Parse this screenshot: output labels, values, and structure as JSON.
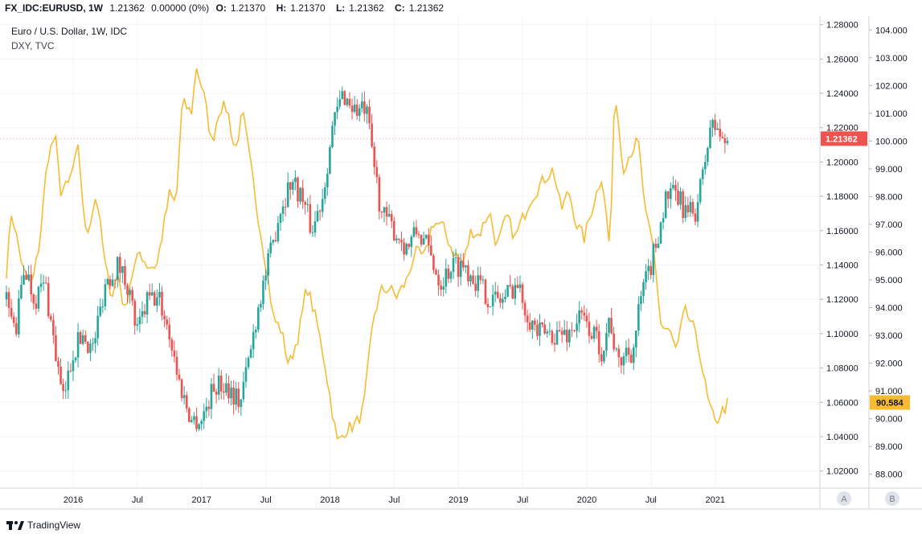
{
  "header": {
    "symbol": "FX_IDC:EURUSD, 1W",
    "last": "1.21362",
    "change": "0.00000 (0%)",
    "open_label": "O:",
    "open": "1.21370",
    "high_label": "H:",
    "high": "1.21370",
    "low_label": "L:",
    "low": "1.21362",
    "close_label": "C:",
    "close": "1.21362"
  },
  "legend": {
    "main": "Euro / U.S. Dollar, 1W, IDC",
    "compare": "DXY, TVC"
  },
  "brand": "TradingView",
  "scale_buttons": {
    "a": "A",
    "b": "B"
  },
  "colors": {
    "up": "#26a69a",
    "down": "#ef5350",
    "dxy": "#f7bb33",
    "last_badge": "#ef5350",
    "dxy_badge": "#f7bb33",
    "grid": "#f0f3fa"
  },
  "chart_data": {
    "type": "candlestick",
    "ylim_eurusd": [
      1.01,
      1.285
    ],
    "ylim_dxy": [
      87.5,
      104.5
    ],
    "eurusd_ticks": [
      "1.28000",
      "1.26000",
      "1.24000",
      "1.22000",
      "1.20000",
      "1.18000",
      "1.16000",
      "1.14000",
      "1.12000",
      "1.10000",
      "1.08000",
      "1.06000",
      "1.04000",
      "1.02000"
    ],
    "dxy_ticks": [
      "104.000",
      "103.000",
      "102.000",
      "101.000",
      "100.000",
      "99.000",
      "98.000",
      "97.000",
      "96.000",
      "95.000",
      "94.000",
      "93.000",
      "92.000",
      "91.000",
      "90.000",
      "89.000",
      "88.000"
    ],
    "x_ticks": [
      {
        "label": "2016",
        "t": 2016.0
      },
      {
        "label": "Jul",
        "t": 2016.5
      },
      {
        "label": "2017",
        "t": 2017.0
      },
      {
        "label": "Jul",
        "t": 2017.5
      },
      {
        "label": "2018",
        "t": 2018.0
      },
      {
        "label": "Jul",
        "t": 2018.5
      },
      {
        "label": "2019",
        "t": 2019.0
      },
      {
        "label": "Jul",
        "t": 2019.5
      },
      {
        "label": "2020",
        "t": 2020.0
      },
      {
        "label": "Jul",
        "t": 2020.5
      },
      {
        "label": "2021",
        "t": 2021.0
      }
    ],
    "x_range": [
      2015.48,
      2021.44
    ],
    "eurusd_last": "1.21362",
    "dxy_last": "90.584",
    "series": [
      {
        "name": "EURUSD",
        "points": [
          [
            2015.48,
            1.12
          ],
          [
            2015.55,
            1.1
          ],
          [
            2015.62,
            1.14
          ],
          [
            2015.7,
            1.12
          ],
          [
            2015.78,
            1.13
          ],
          [
            2015.86,
            1.09
          ],
          [
            2015.92,
            1.06
          ],
          [
            2016.0,
            1.09
          ],
          [
            2016.08,
            1.1
          ],
          [
            2016.15,
            1.09
          ],
          [
            2016.25,
            1.13
          ],
          [
            2016.35,
            1.14
          ],
          [
            2016.42,
            1.13
          ],
          [
            2016.5,
            1.1
          ],
          [
            2016.58,
            1.12
          ],
          [
            2016.67,
            1.12
          ],
          [
            2016.75,
            1.1
          ],
          [
            2016.83,
            1.07
          ],
          [
            2016.92,
            1.05
          ],
          [
            2017.0,
            1.05
          ],
          [
            2017.1,
            1.07
          ],
          [
            2017.2,
            1.07
          ],
          [
            2017.3,
            1.06
          ],
          [
            2017.38,
            1.09
          ],
          [
            2017.45,
            1.12
          ],
          [
            2017.55,
            1.15
          ],
          [
            2017.6,
            1.17
          ],
          [
            2017.7,
            1.19
          ],
          [
            2017.78,
            1.18
          ],
          [
            2017.86,
            1.16
          ],
          [
            2017.94,
            1.18
          ],
          [
            2018.02,
            1.22
          ],
          [
            2018.1,
            1.24
          ],
          [
            2018.2,
            1.23
          ],
          [
            2018.28,
            1.23
          ],
          [
            2018.34,
            1.2
          ],
          [
            2018.4,
            1.17
          ],
          [
            2018.5,
            1.16
          ],
          [
            2018.6,
            1.15
          ],
          [
            2018.68,
            1.16
          ],
          [
            2018.76,
            1.15
          ],
          [
            2018.86,
            1.13
          ],
          [
            2018.95,
            1.14
          ],
          [
            2019.05,
            1.14
          ],
          [
            2019.15,
            1.13
          ],
          [
            2019.25,
            1.12
          ],
          [
            2019.35,
            1.12
          ],
          [
            2019.45,
            1.13
          ],
          [
            2019.55,
            1.11
          ],
          [
            2019.62,
            1.1
          ],
          [
            2019.7,
            1.1
          ],
          [
            2019.78,
            1.1
          ],
          [
            2019.86,
            1.1
          ],
          [
            2019.95,
            1.11
          ],
          [
            2020.05,
            1.1
          ],
          [
            2020.12,
            1.09
          ],
          [
            2020.18,
            1.11
          ],
          [
            2020.24,
            1.08
          ],
          [
            2020.3,
            1.09
          ],
          [
            2020.36,
            1.09
          ],
          [
            2020.42,
            1.12
          ],
          [
            2020.5,
            1.14
          ],
          [
            2020.56,
            1.16
          ],
          [
            2020.62,
            1.18
          ],
          [
            2020.7,
            1.18
          ],
          [
            2020.78,
            1.17
          ],
          [
            2020.84,
            1.17
          ],
          [
            2020.9,
            1.19
          ],
          [
            2020.96,
            1.22
          ],
          [
            2021.02,
            1.22
          ],
          [
            2021.06,
            1.21
          ],
          [
            2021.1,
            1.21362
          ]
        ]
      },
      {
        "name": "DXY",
        "points": [
          [
            2015.48,
            95.3
          ],
          [
            2015.52,
            97.5
          ],
          [
            2015.56,
            96.5
          ],
          [
            2015.62,
            95.2
          ],
          [
            2015.68,
            94.8
          ],
          [
            2015.74,
            96.4
          ],
          [
            2015.8,
            99.4
          ],
          [
            2015.86,
            100.2
          ],
          [
            2015.9,
            98.2
          ],
          [
            2015.96,
            98.4
          ],
          [
            2016.04,
            99.7
          ],
          [
            2016.1,
            96.5
          ],
          [
            2016.18,
            98.1
          ],
          [
            2016.25,
            95.5
          ],
          [
            2016.3,
            94.4
          ],
          [
            2016.35,
            95.3
          ],
          [
            2016.4,
            93.8
          ],
          [
            2016.45,
            95.1
          ],
          [
            2016.52,
            96.0
          ],
          [
            2016.58,
            95.5
          ],
          [
            2016.65,
            95.5
          ],
          [
            2016.75,
            98.1
          ],
          [
            2016.8,
            97.7
          ],
          [
            2016.85,
            101.4
          ],
          [
            2016.92,
            101.0
          ],
          [
            2016.96,
            102.7
          ],
          [
            2017.02,
            101.6
          ],
          [
            2017.08,
            99.9
          ],
          [
            2017.14,
            101.2
          ],
          [
            2017.2,
            101.2
          ],
          [
            2017.26,
            99.6
          ],
          [
            2017.32,
            101.0
          ],
          [
            2017.38,
            99.2
          ],
          [
            2017.44,
            97.3
          ],
          [
            2017.5,
            95.6
          ],
          [
            2017.56,
            93.6
          ],
          [
            2017.62,
            93.2
          ],
          [
            2017.68,
            91.9
          ],
          [
            2017.76,
            93.1
          ],
          [
            2017.82,
            94.8
          ],
          [
            2017.9,
            93.4
          ],
          [
            2017.96,
            92.0
          ],
          [
            2018.02,
            90.2
          ],
          [
            2018.06,
            89.1
          ],
          [
            2018.12,
            89.6
          ],
          [
            2018.2,
            89.8
          ],
          [
            2018.26,
            90.3
          ],
          [
            2018.34,
            93.7
          ],
          [
            2018.4,
            94.6
          ],
          [
            2018.46,
            94.7
          ],
          [
            2018.52,
            94.4
          ],
          [
            2018.6,
            95.0
          ],
          [
            2018.66,
            96.0
          ],
          [
            2018.74,
            95.8
          ],
          [
            2018.8,
            97.1
          ],
          [
            2018.88,
            96.9
          ],
          [
            2018.96,
            96.0
          ],
          [
            2019.04,
            95.6
          ],
          [
            2019.1,
            96.8
          ],
          [
            2019.16,
            96.6
          ],
          [
            2019.24,
            97.5
          ],
          [
            2019.3,
            96.2
          ],
          [
            2019.38,
            97.3
          ],
          [
            2019.44,
            96.5
          ],
          [
            2019.5,
            97.2
          ],
          [
            2019.56,
            97.9
          ],
          [
            2019.62,
            98.3
          ],
          [
            2019.68,
            98.7
          ],
          [
            2019.74,
            99.0
          ],
          [
            2019.8,
            97.5
          ],
          [
            2019.86,
            98.2
          ],
          [
            2019.92,
            97.0
          ],
          [
            2019.98,
            96.5
          ],
          [
            2020.06,
            97.9
          ],
          [
            2020.12,
            98.8
          ],
          [
            2020.18,
            96.0
          ],
          [
            2020.22,
            102.0
          ],
          [
            2020.28,
            99.0
          ],
          [
            2020.34,
            99.6
          ],
          [
            2020.4,
            100.0
          ],
          [
            2020.46,
            97.3
          ],
          [
            2020.52,
            96.1
          ],
          [
            2020.58,
            93.3
          ],
          [
            2020.64,
            93.2
          ],
          [
            2020.7,
            92.4
          ],
          [
            2020.76,
            93.9
          ],
          [
            2020.82,
            93.4
          ],
          [
            2020.88,
            92.4
          ],
          [
            2020.94,
            90.7
          ],
          [
            2021.0,
            89.8
          ],
          [
            2021.04,
            90.2
          ],
          [
            2021.08,
            90.4
          ],
          [
            2021.1,
            90.584
          ]
        ]
      }
    ]
  }
}
